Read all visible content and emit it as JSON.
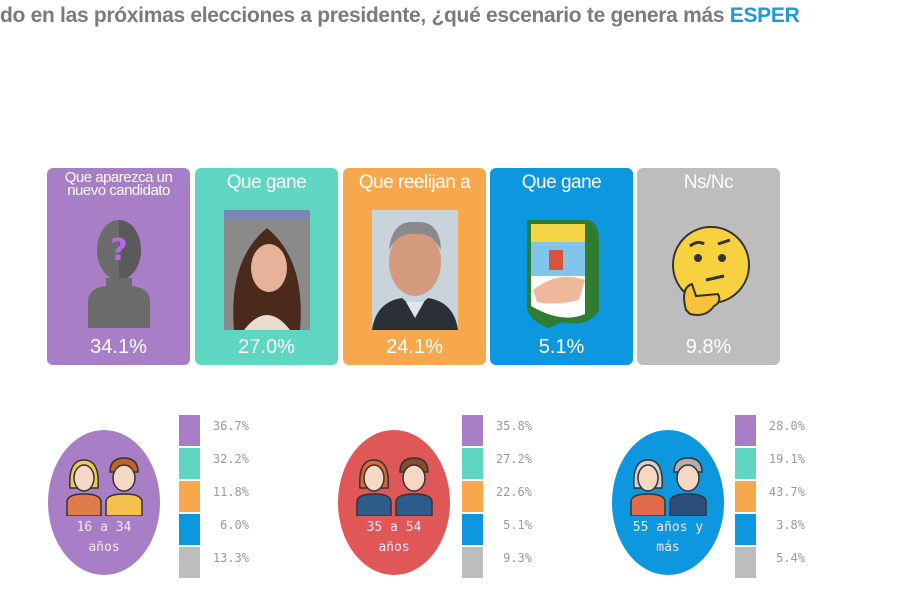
{
  "title": {
    "text": "do en las próximas elecciones a presidente, ¿qué escenario te genera más ",
    "highlight": "ESPER"
  },
  "colors": {
    "nuevo": "#a87fc6",
    "cristina": "#5fd6c2",
    "macri": "#f8a84c",
    "pj": "#0d97df",
    "nsnc": "#bdbdbd"
  },
  "chart_data": {
    "type": "bar",
    "title": "¿qué escenario te genera más ESPER",
    "categories": [
      "Que aparezca un nuevo candidato",
      "Que gane",
      "Que reelijan a",
      "Que gane",
      "Ns/Nc"
    ],
    "values": [
      34.1,
      27.0,
      24.1,
      5.1,
      9.8
    ],
    "labels": [
      "34.1%",
      "27.0%",
      "24.1%",
      "5.1%",
      "9.8%"
    ],
    "groups": [
      {
        "name": "16 a 34 años",
        "line1": "16 a 34",
        "line2": "años",
        "circle_color": "#a87fc6",
        "values": [
          36.7,
          32.2,
          11.8,
          6.0,
          13.3
        ],
        "labels": [
          "36.7%",
          "32.2%",
          "11.8%",
          "6.0%",
          "13.3%"
        ]
      },
      {
        "name": "35 a 54 años",
        "line1": "35 a 54",
        "line2": "años",
        "circle_color": "#e05757",
        "values": [
          35.8,
          27.2,
          22.6,
          5.1,
          9.3
        ],
        "labels": [
          "35.8%",
          "27.2%",
          "22.6%",
          "5.1%",
          "9.3%"
        ]
      },
      {
        "name": "55 años y más",
        "line1": "55 años y",
        "line2": "más",
        "circle_color": "#0d97df",
        "values": [
          28.0,
          19.1,
          43.7,
          3.8,
          5.4
        ],
        "labels": [
          "28.0%",
          "19.1%",
          "43.7%",
          "3.8%",
          "5.4%"
        ]
      }
    ]
  }
}
